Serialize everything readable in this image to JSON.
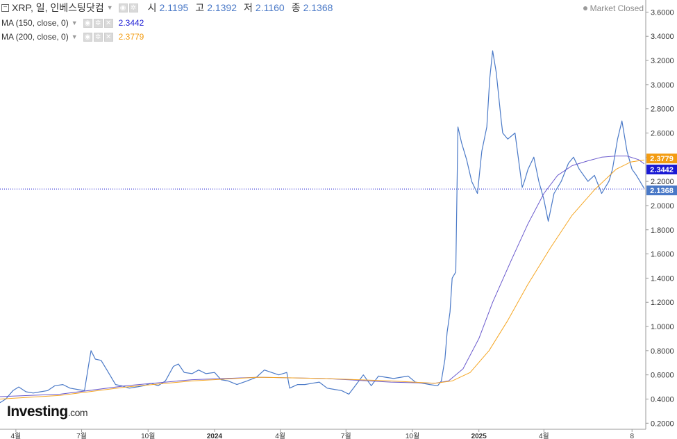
{
  "header": {
    "title": "XRP, 일, 인베스팅닷컴",
    "ohlc": [
      {
        "key": "시",
        "value": "2.1195"
      },
      {
        "key": "고",
        "value": "2.1392"
      },
      {
        "key": "저",
        "value": "2.1160"
      },
      {
        "key": "종",
        "value": "2.1368"
      }
    ],
    "market_status": "Market Closed"
  },
  "indicators": [
    {
      "label": "MA (150, close, 0)",
      "value": "2.3442",
      "color": "#1a1ad4"
    },
    {
      "label": "MA (200, close, 0)",
      "value": "2.3779",
      "color": "#f39c12"
    }
  ],
  "price_badges": {
    "ma200": {
      "text": "2.3779",
      "color": "#f39c12"
    },
    "ma150": {
      "text": "2.3442",
      "color": "#1a1ad4"
    },
    "last": {
      "text": "2.1368",
      "color": "#4a79c7"
    }
  },
  "logo": {
    "main": "Investing",
    "suffix": ".com"
  },
  "colors": {
    "price_line": "#4a79c7",
    "ma150": "#6a5acd",
    "ma200": "#f5a623",
    "axis_text": "#333333"
  },
  "chart_data": {
    "type": "line",
    "y_ticks": [
      "0.2000",
      "0.4000",
      "0.6000",
      "0.8000",
      "1.0000",
      "1.2000",
      "1.4000",
      "1.6000",
      "1.8000",
      "2.0000",
      "2.2000",
      "2.4000",
      "2.6000",
      "2.8000",
      "3.0000",
      "3.2000",
      "3.4000",
      "3.6000"
    ],
    "x_ticks": [
      {
        "label": "4월",
        "date": "2023-04-01"
      },
      {
        "label": "7월",
        "date": "2023-07-01"
      },
      {
        "label": "10월",
        "date": "2023-10-01"
      },
      {
        "label": "2024",
        "date": "2024-01-01"
      },
      {
        "label": "4월",
        "date": "2024-04-01"
      },
      {
        "label": "7월",
        "date": "2024-07-01"
      },
      {
        "label": "10월",
        "date": "2024-10-01"
      },
      {
        "label": "2025",
        "date": "2025-01-01"
      },
      {
        "label": "4월",
        "date": "2025-04-01"
      },
      {
        "label": "8",
        "date": "2025-08-01"
      }
    ],
    "ylim": [
      0.15,
      3.7
    ],
    "xlim": [
      "2023-03-10",
      "2025-08-20"
    ],
    "last_price": 2.1368,
    "series": [
      {
        "name": "XRP",
        "x": [
          "2023-03-10",
          "2023-03-18",
          "2023-03-28",
          "2023-04-05",
          "2023-04-15",
          "2023-04-25",
          "2023-05-05",
          "2023-05-15",
          "2023-05-25",
          "2023-06-05",
          "2023-06-15",
          "2023-06-25",
          "2023-07-05",
          "2023-07-12",
          "2023-07-14",
          "2023-07-20",
          "2023-07-28",
          "2023-08-05",
          "2023-08-17",
          "2023-08-25",
          "2023-09-05",
          "2023-09-15",
          "2023-09-25",
          "2023-10-05",
          "2023-10-15",
          "2023-10-25",
          "2023-11-05",
          "2023-11-12",
          "2023-11-20",
          "2023-12-01",
          "2023-12-10",
          "2023-12-20",
          "2024-01-01",
          "2024-01-10",
          "2024-01-20",
          "2024-02-01",
          "2024-02-15",
          "2024-02-28",
          "2024-03-10",
          "2024-03-20",
          "2024-03-30",
          "2024-04-10",
          "2024-04-14",
          "2024-04-25",
          "2024-05-05",
          "2024-05-15",
          "2024-05-25",
          "2024-06-05",
          "2024-06-15",
          "2024-06-25",
          "2024-07-05",
          "2024-07-15",
          "2024-07-25",
          "2024-08-05",
          "2024-08-15",
          "2024-08-25",
          "2024-09-05",
          "2024-09-15",
          "2024-09-25",
          "2024-10-05",
          "2024-10-15",
          "2024-10-25",
          "2024-11-05",
          "2024-11-10",
          "2024-11-15",
          "2024-11-18",
          "2024-11-22",
          "2024-11-25",
          "2024-11-30",
          "2024-12-03",
          "2024-12-08",
          "2024-12-15",
          "2024-12-22",
          "2024-12-30",
          "2025-01-05",
          "2025-01-12",
          "2025-01-16",
          "2025-01-20",
          "2025-01-25",
          "2025-02-01",
          "2025-02-03",
          "2025-02-10",
          "2025-02-20",
          "2025-03-02",
          "2025-03-05",
          "2025-03-10",
          "2025-03-18",
          "2025-03-25",
          "2025-04-01",
          "2025-04-07",
          "2025-04-15",
          "2025-04-25",
          "2025-05-05",
          "2025-05-12",
          "2025-05-20",
          "2025-06-01",
          "2025-06-10",
          "2025-06-20",
          "2025-06-30",
          "2025-07-05",
          "2025-07-12",
          "2025-07-18",
          "2025-07-25",
          "2025-08-01",
          "2025-08-07",
          "2025-08-12",
          "2025-08-18"
        ],
        "y": [
          0.37,
          0.4,
          0.47,
          0.5,
          0.46,
          0.45,
          0.46,
          0.47,
          0.51,
          0.52,
          0.49,
          0.48,
          0.47,
          0.73,
          0.8,
          0.73,
          0.72,
          0.64,
          0.52,
          0.51,
          0.49,
          0.5,
          0.51,
          0.53,
          0.51,
          0.55,
          0.67,
          0.69,
          0.62,
          0.61,
          0.64,
          0.61,
          0.62,
          0.56,
          0.55,
          0.52,
          0.55,
          0.58,
          0.64,
          0.62,
          0.6,
          0.62,
          0.49,
          0.52,
          0.52,
          0.53,
          0.54,
          0.49,
          0.48,
          0.47,
          0.44,
          0.52,
          0.6,
          0.51,
          0.59,
          0.58,
          0.57,
          0.58,
          0.59,
          0.54,
          0.53,
          0.52,
          0.51,
          0.55,
          0.73,
          0.95,
          1.12,
          1.4,
          1.45,
          2.65,
          2.52,
          2.38,
          2.2,
          2.1,
          2.45,
          2.65,
          3.05,
          3.28,
          3.1,
          2.7,
          2.6,
          2.55,
          2.6,
          2.15,
          2.2,
          2.3,
          2.4,
          2.2,
          2.05,
          1.87,
          2.1,
          2.2,
          2.35,
          2.4,
          2.3,
          2.2,
          2.25,
          2.1,
          2.2,
          2.3,
          2.55,
          2.7,
          2.45,
          2.3,
          2.25,
          2.2,
          2.14
        ]
      },
      {
        "name": "MA (150, close, 0)",
        "x": [
          "2023-03-10",
          "2023-06-01",
          "2023-09-01",
          "2023-12-01",
          "2024-03-01",
          "2024-06-01",
          "2024-09-01",
          "2024-11-01",
          "2024-11-20",
          "2024-12-10",
          "2025-01-01",
          "2025-01-20",
          "2025-02-15",
          "2025-03-10",
          "2025-04-01",
          "2025-04-20",
          "2025-05-10",
          "2025-06-01",
          "2025-06-20",
          "2025-07-10",
          "2025-07-25",
          "2025-08-10",
          "2025-08-18"
        ],
        "y": [
          0.42,
          0.44,
          0.51,
          0.56,
          0.58,
          0.57,
          0.54,
          0.53,
          0.55,
          0.65,
          0.9,
          1.2,
          1.55,
          1.85,
          2.1,
          2.25,
          2.33,
          2.37,
          2.4,
          2.41,
          2.41,
          2.38,
          2.3442
        ]
      },
      {
        "name": "MA (200, close, 0)",
        "x": [
          "2023-03-10",
          "2023-06-01",
          "2023-09-01",
          "2023-12-01",
          "2024-03-01",
          "2024-06-01",
          "2024-09-01",
          "2024-11-01",
          "2024-11-25",
          "2024-12-20",
          "2025-01-15",
          "2025-02-10",
          "2025-03-10",
          "2025-04-10",
          "2025-05-10",
          "2025-06-10",
          "2025-07-10",
          "2025-07-30",
          "2025-08-18"
        ],
        "y": [
          0.4,
          0.43,
          0.5,
          0.55,
          0.58,
          0.57,
          0.55,
          0.53,
          0.55,
          0.62,
          0.8,
          1.05,
          1.35,
          1.65,
          1.92,
          2.13,
          2.3,
          2.36,
          2.3779
        ]
      }
    ]
  }
}
